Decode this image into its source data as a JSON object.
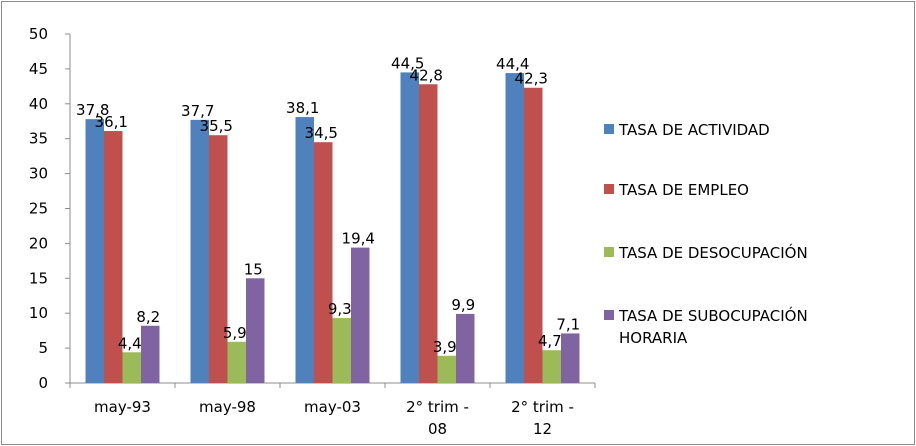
{
  "chart_data": {
    "type": "bar",
    "title": "",
    "xlabel": "",
    "ylabel": "",
    "ylim": [
      0,
      50
    ],
    "yticks": [
      0,
      5,
      10,
      15,
      20,
      25,
      30,
      35,
      40,
      45,
      50
    ],
    "grid": false,
    "legend_position": "right",
    "categories": [
      [
        "may-93"
      ],
      [
        "may-98"
      ],
      [
        "may-03"
      ],
      [
        "2° trim -",
        "08"
      ],
      [
        "2° trim -",
        "12"
      ]
    ],
    "series": [
      {
        "name": "TASA DE ACTIVIDAD",
        "name_lines": [
          "TASA DE ACTIVIDAD"
        ],
        "color": "#4f81bd",
        "values": [
          37.8,
          37.7,
          38.1,
          44.5,
          44.4
        ],
        "labels": [
          "37,8",
          "37,7",
          "38,1",
          "44,5",
          "44,4"
        ]
      },
      {
        "name": "TASA DE EMPLEO",
        "name_lines": [
          "TASA DE EMPLEO"
        ],
        "color": "#c0504d",
        "values": [
          36.1,
          35.5,
          34.5,
          42.8,
          42.3
        ],
        "labels": [
          "36,1",
          "35,5",
          "34,5",
          "42,8",
          "42,3"
        ]
      },
      {
        "name": "TASA DE DESOCUPACIÓN",
        "name_lines": [
          "TASA DE DESOCUPACIÓN"
        ],
        "color": "#9bbb59",
        "values": [
          4.4,
          5.9,
          9.3,
          3.9,
          4.7
        ],
        "labels": [
          "4,4",
          "5,9",
          "9,3",
          "3,9",
          "4,7"
        ]
      },
      {
        "name": "TASA DE SUBOCUPACIÓN HORARIA",
        "name_lines": [
          "TASA DE SUBOCUPACIÓN",
          "HORARIA"
        ],
        "color": "#8064a2",
        "values": [
          8.2,
          15,
          19.4,
          9.9,
          7.1
        ],
        "labels": [
          "8,2",
          "15",
          "19,4",
          "9,9",
          "7,1"
        ]
      }
    ]
  }
}
